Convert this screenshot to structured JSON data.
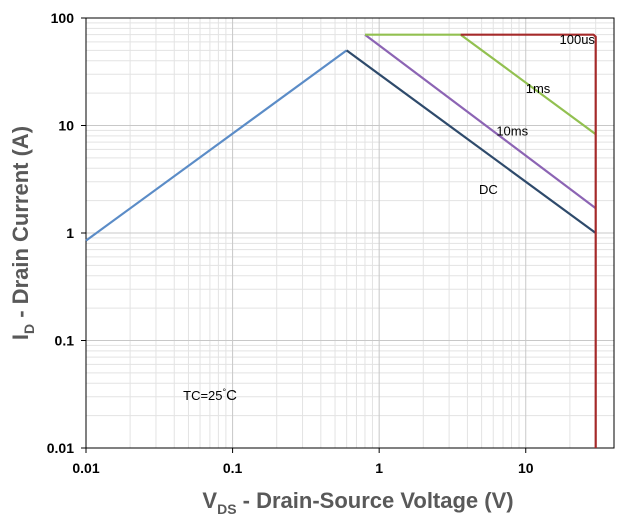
{
  "chart_data": {
    "type": "line",
    "title": "",
    "xlabel_main": "V",
    "xlabel_sub": "DS",
    "xlabel_rest": " - Drain-Source Voltage (V)",
    "ylabel_main": "I",
    "ylabel_sub": "D",
    "ylabel_rest": " - Drain Current (A)",
    "x_scale": "log",
    "y_scale": "log",
    "xlim": [
      0.01,
      40
    ],
    "ylim": [
      0.01,
      100
    ],
    "grid": true,
    "x_ticks": [
      0.01,
      0.1,
      1,
      10
    ],
    "x_tick_labels": [
      "0.01",
      "0.1",
      "1",
      "10"
    ],
    "y_ticks": [
      0.01,
      0.1,
      1,
      10,
      100
    ],
    "y_tick_labels": [
      "0.01",
      "0.1",
      "1",
      "10",
      "100"
    ],
    "series": [
      {
        "name": "",
        "color": "#5b8cc7",
        "points": [
          [
            0.01,
            0.85
          ],
          [
            0.6,
            50
          ]
        ]
      },
      {
        "name": "DC",
        "color": "#2e4a6b",
        "points": [
          [
            0.6,
            50
          ],
          [
            30,
            1
          ]
        ]
      },
      {
        "name": "10ms",
        "color": "#8c64b4",
        "points": [
          [
            0.8,
            70
          ],
          [
            30,
            1.7
          ]
        ]
      },
      {
        "name": "1ms",
        "color": "#92c050",
        "points": [
          [
            0.8,
            70
          ],
          [
            3.6,
            70
          ],
          [
            30,
            8.3
          ]
        ]
      },
      {
        "name": "100us",
        "color": "#a52a2a",
        "points": [
          [
            3.6,
            70
          ],
          [
            29,
            70
          ],
          [
            30,
            67
          ],
          [
            30,
            0.01
          ]
        ]
      }
    ],
    "annotations": [
      {
        "text": "100us",
        "x": 17,
        "y": 57
      },
      {
        "text": "1ms",
        "x": 10,
        "y": 20
      },
      {
        "text": "10ms",
        "x": 6.3,
        "y": 8.1
      },
      {
        "text": "DC",
        "x": 4.8,
        "y": 2.3
      },
      {
        "text": "TC=25",
        "x": 0.046,
        "y": 0.028,
        "degree": "°",
        "unit": "C"
      }
    ]
  }
}
